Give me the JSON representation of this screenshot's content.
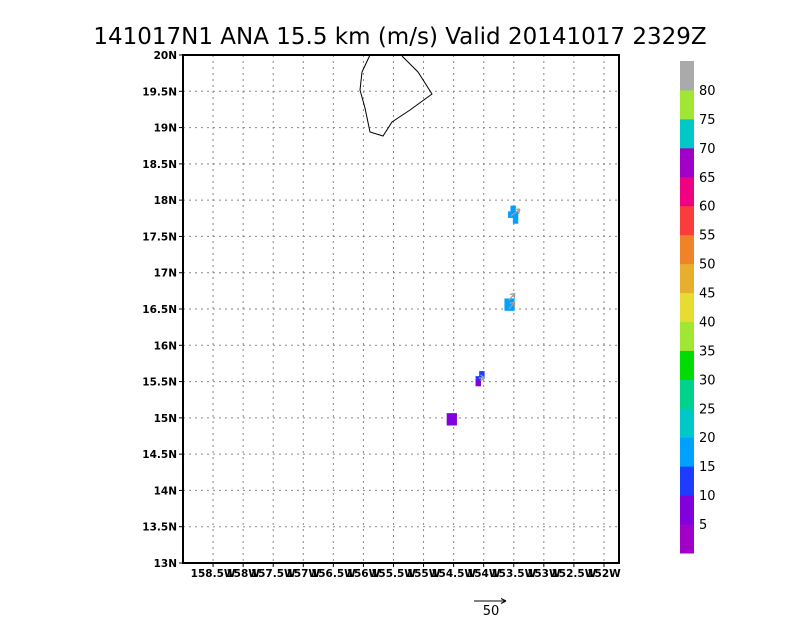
{
  "chart_data": {
    "type": "heatmap",
    "title": "141017N1 ANA 15.5 km (m/s) Valid 20141017 2329Z",
    "xlim": [
      -159,
      -151.75
    ],
    "ylim": [
      13,
      20
    ],
    "x_ticks": [
      {
        "value": -158.5,
        "label": "158.5W"
      },
      {
        "value": -158,
        "label": "158W"
      },
      {
        "value": -157.5,
        "label": "157.5W"
      },
      {
        "value": -157,
        "label": "157W"
      },
      {
        "value": -156.5,
        "label": "156.5W"
      },
      {
        "value": -156,
        "label": "156W"
      },
      {
        "value": -155.5,
        "label": "155.5W"
      },
      {
        "value": -155,
        "label": "155W"
      },
      {
        "value": -154.5,
        "label": "154.5W"
      },
      {
        "value": -154,
        "label": "154W"
      },
      {
        "value": -153.5,
        "label": "153.5W"
      },
      {
        "value": -153,
        "label": "153W"
      },
      {
        "value": -152.5,
        "label": "152.5W"
      },
      {
        "value": -152,
        "label": "152W"
      }
    ],
    "y_ticks": [
      {
        "value": 13,
        "label": "13N"
      },
      {
        "value": 13.5,
        "label": "13.5N"
      },
      {
        "value": 14,
        "label": "14N"
      },
      {
        "value": 14.5,
        "label": "14.5N"
      },
      {
        "value": 15,
        "label": "15N"
      },
      {
        "value": 15.5,
        "label": "15.5N"
      },
      {
        "value": 16,
        "label": "16N"
      },
      {
        "value": 16.5,
        "label": "16.5N"
      },
      {
        "value": 17,
        "label": "17N"
      },
      {
        "value": 17.5,
        "label": "17.5N"
      },
      {
        "value": 18,
        "label": "18N"
      },
      {
        "value": 18.5,
        "label": "18.5N"
      },
      {
        "value": 19,
        "label": "19N"
      },
      {
        "value": 19.5,
        "label": "19.5N"
      },
      {
        "value": 20,
        "label": "20N"
      }
    ],
    "grid": true,
    "colorbar": {
      "levels": [
        0,
        5,
        10,
        15,
        20,
        25,
        30,
        35,
        40,
        45,
        50,
        55,
        60,
        65,
        70,
        75,
        80,
        85
      ],
      "labels": [
        "5",
        "10",
        "15",
        "20",
        "25",
        "30",
        "35",
        "40",
        "45",
        "50",
        "55",
        "60",
        "65",
        "70",
        "75",
        "80"
      ],
      "colors": [
        "#a000c8",
        "#8200dc",
        "#1e3cff",
        "#00a0ff",
        "#00c8c8",
        "#00d28c",
        "#00dc00",
        "#a0e632",
        "#e6dc32",
        "#e6af2d",
        "#f08228",
        "#fa3c3c",
        "#f00082",
        "#a000c8",
        "#00c8c8",
        "#a0e632",
        "#aaaaaa"
      ]
    },
    "cells": [
      {
        "lon": -153.51,
        "lat": 17.88,
        "value": 17
      },
      {
        "lon": -153.55,
        "lat": 17.8,
        "value": 17
      },
      {
        "lon": -153.47,
        "lat": 17.8,
        "value": 17
      },
      {
        "lon": -153.47,
        "lat": 17.72,
        "value": 17
      },
      {
        "lon": -153.61,
        "lat": 16.6,
        "value": 17
      },
      {
        "lon": -153.53,
        "lat": 16.6,
        "value": 17
      },
      {
        "lon": -153.61,
        "lat": 16.52,
        "value": 17
      },
      {
        "lon": -153.53,
        "lat": 16.52,
        "value": 17
      },
      {
        "lon": -154.03,
        "lat": 15.6,
        "value": 12
      },
      {
        "lon": -154.09,
        "lat": 15.53,
        "value": 12
      },
      {
        "lon": -154.09,
        "lat": 15.48,
        "value": 8
      },
      {
        "lon": -154.57,
        "lat": 15.02,
        "value": 8
      },
      {
        "lon": -154.49,
        "lat": 15.02,
        "value": 8
      },
      {
        "lon": -154.57,
        "lat": 14.94,
        "value": 8
      },
      {
        "lon": -154.49,
        "lat": 14.94,
        "value": 7
      }
    ],
    "vectors": [
      {
        "lon": -153.55,
        "lat": 17.78,
        "u": 8,
        "v": 6
      },
      {
        "lon": -153.58,
        "lat": 16.5,
        "u": 5,
        "v": 6
      },
      {
        "lon": -153.58,
        "lat": 16.62,
        "u": 5,
        "v": 6
      },
      {
        "lon": -154.08,
        "lat": 15.55,
        "u": 5,
        "v": 0
      }
    ],
    "reference_vector": {
      "value": 50,
      "label": "50"
    }
  }
}
